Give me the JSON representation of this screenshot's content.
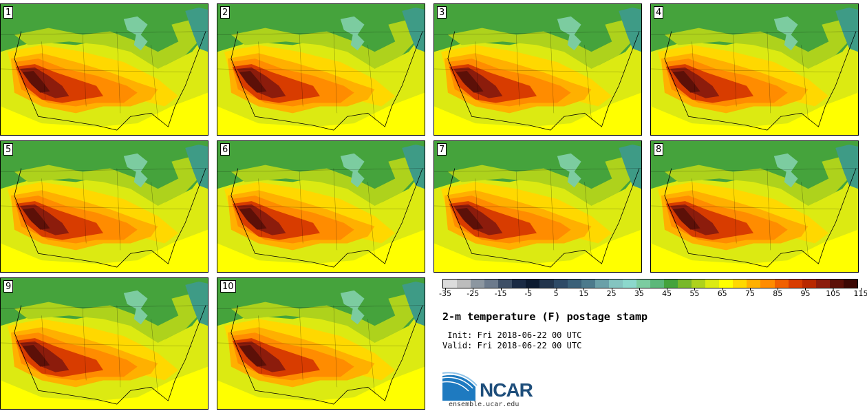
{
  "panels": [
    {
      "label": "1"
    },
    {
      "label": "2"
    },
    {
      "label": "3"
    },
    {
      "label": "4"
    },
    {
      "label": "5"
    },
    {
      "label": "6"
    },
    {
      "label": "7"
    },
    {
      "label": "8"
    },
    {
      "label": "9"
    },
    {
      "label": "10"
    }
  ],
  "colorbar": {
    "unit": "F",
    "ticks": [
      "-35",
      "-25",
      "-15",
      "-5",
      "5",
      "15",
      "25",
      "35",
      "45",
      "55",
      "65",
      "75",
      "85",
      "95",
      "105",
      "115"
    ],
    "colors": [
      "#dcdcdc",
      "#bcbcbc",
      "#8c96a0",
      "#6c7a8c",
      "#3e4f66",
      "#1a2a44",
      "#0c1a30",
      "#22344c",
      "#2e4a66",
      "#3a6078",
      "#4c7a8c",
      "#6aa0a8",
      "#84c4c0",
      "#8cd8cc",
      "#7ccca0",
      "#5cb87a",
      "#45a33c",
      "#78b82a",
      "#aed21c",
      "#dcea12",
      "#ffff00",
      "#ffd800",
      "#ffb000",
      "#ff8c00",
      "#f06000",
      "#d83c00",
      "#b82800",
      "#8c1c0c",
      "#5c1008",
      "#3c0804"
    ]
  },
  "title": "2-m temperature (F) postage stamp",
  "init": " Init: Fri 2018-06-22 00 UTC",
  "valid": "Valid: Fri 2018-06-22 00 UTC",
  "logo_text": "NCAR",
  "url": "ensemble.ucar.edu"
}
